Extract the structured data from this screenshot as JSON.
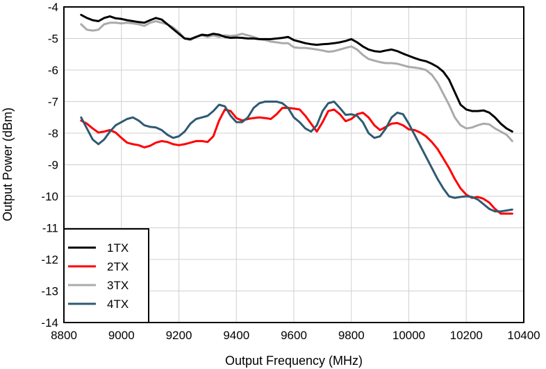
{
  "chart_data": {
    "type": "line",
    "xlabel": "Output Frequency (MHz)",
    "ylabel": "Output Power (dBm)",
    "xlim": [
      8800,
      10400
    ],
    "ylim": [
      -14,
      -4
    ],
    "xticks": [
      8800,
      9000,
      9200,
      9400,
      9600,
      9800,
      10000,
      10200,
      10400
    ],
    "yticks": [
      -4,
      -5,
      -6,
      -7,
      -8,
      -9,
      -10,
      -11,
      -12,
      -13,
      -14
    ],
    "xtick_labels": [
      "8800",
      "9000",
      "9200",
      "9400",
      "9600",
      "9800",
      "10000",
      "10200",
      "10400"
    ],
    "ytick_labels": [
      "-4",
      "-5",
      "-6",
      "-7",
      "-8",
      "-9",
      "-10",
      "-11",
      "-12",
      "-13",
      "-14"
    ],
    "grid": true,
    "legend_position": "bottom-left",
    "series": [
      {
        "name": "1TX",
        "color": "#000000",
        "x": [
          8860,
          8880,
          8900,
          8920,
          8940,
          8960,
          8980,
          9000,
          9020,
          9040,
          9060,
          9080,
          9100,
          9120,
          9140,
          9160,
          9180,
          9200,
          9220,
          9240,
          9260,
          9280,
          9300,
          9320,
          9340,
          9360,
          9380,
          9400,
          9420,
          9440,
          9460,
          9480,
          9500,
          9520,
          9540,
          9560,
          9580,
          9600,
          9620,
          9640,
          9660,
          9680,
          9700,
          9720,
          9740,
          9760,
          9780,
          9800,
          9820,
          9840,
          9860,
          9880,
          9900,
          9920,
          9940,
          9960,
          9980,
          10000,
          10020,
          10040,
          10060,
          10080,
          10100,
          10120,
          10140,
          10160,
          10180,
          10200,
          10220,
          10240,
          10260,
          10280,
          10300,
          10320,
          10340,
          10360
        ],
        "y": [
          -4.25,
          -4.35,
          -4.42,
          -4.45,
          -4.35,
          -4.3,
          -4.36,
          -4.38,
          -4.42,
          -4.45,
          -4.48,
          -4.5,
          -4.42,
          -4.35,
          -4.4,
          -4.55,
          -4.7,
          -4.85,
          -5.0,
          -5.02,
          -4.95,
          -4.88,
          -4.9,
          -4.85,
          -4.88,
          -4.95,
          -4.98,
          -4.97,
          -4.98,
          -5.0,
          -5.0,
          -5.02,
          -5.02,
          -5.02,
          -5.0,
          -4.98,
          -4.95,
          -5.05,
          -5.1,
          -5.15,
          -5.18,
          -5.2,
          -5.18,
          -5.17,
          -5.15,
          -5.12,
          -5.08,
          -5.02,
          -5.12,
          -5.25,
          -5.35,
          -5.4,
          -5.42,
          -5.38,
          -5.35,
          -5.4,
          -5.48,
          -5.55,
          -5.62,
          -5.68,
          -5.72,
          -5.8,
          -5.9,
          -6.05,
          -6.3,
          -6.7,
          -7.1,
          -7.25,
          -7.3,
          -7.3,
          -7.28,
          -7.35,
          -7.5,
          -7.7,
          -7.85,
          -7.95
        ]
      },
      {
        "name": "2TX",
        "color": "#ff0000",
        "x": [
          8860,
          8880,
          8900,
          8920,
          8940,
          8960,
          8980,
          9000,
          9020,
          9040,
          9060,
          9080,
          9100,
          9120,
          9140,
          9160,
          9180,
          9200,
          9220,
          9240,
          9260,
          9280,
          9300,
          9320,
          9340,
          9360,
          9380,
          9400,
          9420,
          9440,
          9460,
          9480,
          9500,
          9520,
          9540,
          9560,
          9580,
          9600,
          9620,
          9640,
          9660,
          9680,
          9700,
          9720,
          9740,
          9760,
          9780,
          9800,
          9820,
          9840,
          9860,
          9880,
          9900,
          9920,
          9940,
          9960,
          9980,
          10000,
          10020,
          10040,
          10060,
          10080,
          10100,
          10120,
          10140,
          10160,
          10180,
          10200,
          10220,
          10240,
          10260,
          10280,
          10300,
          10320,
          10340,
          10360
        ],
        "y": [
          -7.6,
          -7.7,
          -7.85,
          -7.98,
          -7.95,
          -7.9,
          -7.98,
          -8.15,
          -8.3,
          -8.35,
          -8.38,
          -8.45,
          -8.4,
          -8.3,
          -8.25,
          -8.28,
          -8.35,
          -8.38,
          -8.35,
          -8.3,
          -8.25,
          -8.25,
          -8.28,
          -8.1,
          -7.6,
          -7.25,
          -7.3,
          -7.52,
          -7.6,
          -7.55,
          -7.52,
          -7.5,
          -7.52,
          -7.55,
          -7.4,
          -7.2,
          -7.2,
          -7.22,
          -7.25,
          -7.45,
          -7.7,
          -7.95,
          -7.65,
          -7.3,
          -7.25,
          -7.4,
          -7.62,
          -7.55,
          -7.4,
          -7.35,
          -7.5,
          -7.75,
          -7.9,
          -7.8,
          -7.7,
          -7.68,
          -7.75,
          -7.88,
          -7.9,
          -7.98,
          -8.1,
          -8.28,
          -8.5,
          -8.8,
          -9.1,
          -9.45,
          -9.75,
          -9.95,
          -10.05,
          -10.02,
          -10.08,
          -10.2,
          -10.4,
          -10.55,
          -10.55,
          -10.55
        ]
      },
      {
        "name": "3TX",
        "color": "#aaaaaa",
        "x": [
          8860,
          8880,
          8900,
          8920,
          8940,
          8960,
          8980,
          9000,
          9020,
          9040,
          9060,
          9080,
          9100,
          9120,
          9140,
          9160,
          9180,
          9200,
          9220,
          9240,
          9260,
          9280,
          9300,
          9320,
          9340,
          9360,
          9380,
          9400,
          9420,
          9440,
          9460,
          9480,
          9500,
          9520,
          9540,
          9560,
          9580,
          9600,
          9620,
          9640,
          9660,
          9680,
          9700,
          9720,
          9740,
          9760,
          9780,
          9800,
          9820,
          9840,
          9860,
          9880,
          9900,
          9920,
          9940,
          9960,
          9980,
          10000,
          10020,
          10040,
          10060,
          10080,
          10100,
          10120,
          10140,
          10160,
          10180,
          10200,
          10220,
          10240,
          10260,
          10280,
          10300,
          10320,
          10340,
          10360
        ],
        "y": [
          -4.55,
          -4.72,
          -4.75,
          -4.72,
          -4.55,
          -4.5,
          -4.5,
          -4.52,
          -4.5,
          -4.52,
          -4.55,
          -4.6,
          -4.5,
          -4.45,
          -4.5,
          -4.55,
          -4.65,
          -4.8,
          -5.0,
          -5.05,
          -4.95,
          -4.9,
          -4.95,
          -4.9,
          -4.95,
          -4.9,
          -4.92,
          -4.9,
          -4.85,
          -4.9,
          -4.95,
          -5.02,
          -5.05,
          -5.1,
          -5.12,
          -5.15,
          -5.15,
          -5.28,
          -5.3,
          -5.3,
          -5.32,
          -5.35,
          -5.38,
          -5.42,
          -5.4,
          -5.35,
          -5.3,
          -5.25,
          -5.35,
          -5.52,
          -5.65,
          -5.7,
          -5.75,
          -5.78,
          -5.78,
          -5.8,
          -5.85,
          -5.9,
          -5.92,
          -5.95,
          -6.0,
          -6.15,
          -6.4,
          -6.75,
          -7.1,
          -7.5,
          -7.75,
          -7.85,
          -7.82,
          -7.75,
          -7.7,
          -7.72,
          -7.85,
          -7.95,
          -8.05,
          -8.25
        ]
      },
      {
        "name": "4TX",
        "color": "#2f5a72",
        "x": [
          8860,
          8880,
          8900,
          8920,
          8940,
          8960,
          8980,
          9000,
          9020,
          9040,
          9060,
          9080,
          9100,
          9120,
          9140,
          9160,
          9180,
          9200,
          9220,
          9240,
          9260,
          9280,
          9300,
          9320,
          9340,
          9360,
          9380,
          9400,
          9420,
          9440,
          9460,
          9480,
          9500,
          9520,
          9540,
          9560,
          9580,
          9600,
          9620,
          9640,
          9660,
          9680,
          9700,
          9720,
          9740,
          9760,
          9780,
          9800,
          9820,
          9840,
          9860,
          9880,
          9900,
          9920,
          9940,
          9960,
          9980,
          10000,
          10020,
          10040,
          10060,
          10080,
          10100,
          10120,
          10140,
          10160,
          10180,
          10200,
          10220,
          10240,
          10260,
          10280,
          10300,
          10320,
          10340,
          10360
        ],
        "y": [
          -7.5,
          -7.85,
          -8.2,
          -8.35,
          -8.2,
          -7.95,
          -7.75,
          -7.65,
          -7.55,
          -7.5,
          -7.6,
          -7.75,
          -7.8,
          -7.82,
          -7.9,
          -8.05,
          -8.15,
          -8.1,
          -7.95,
          -7.7,
          -7.55,
          -7.5,
          -7.45,
          -7.3,
          -7.1,
          -7.15,
          -7.45,
          -7.65,
          -7.65,
          -7.5,
          -7.2,
          -7.05,
          -7.0,
          -7.0,
          -7.0,
          -7.05,
          -7.2,
          -7.5,
          -7.65,
          -7.85,
          -7.95,
          -7.75,
          -7.3,
          -7.05,
          -7.0,
          -7.2,
          -7.42,
          -7.4,
          -7.45,
          -7.65,
          -8.0,
          -8.15,
          -8.1,
          -7.85,
          -7.5,
          -7.35,
          -7.4,
          -7.7,
          -8.05,
          -8.4,
          -8.75,
          -9.1,
          -9.45,
          -9.75,
          -10.0,
          -10.05,
          -10.02,
          -10.0,
          -10.02,
          -10.1,
          -10.25,
          -10.4,
          -10.48,
          -10.48,
          -10.45,
          -10.42
        ]
      }
    ]
  }
}
